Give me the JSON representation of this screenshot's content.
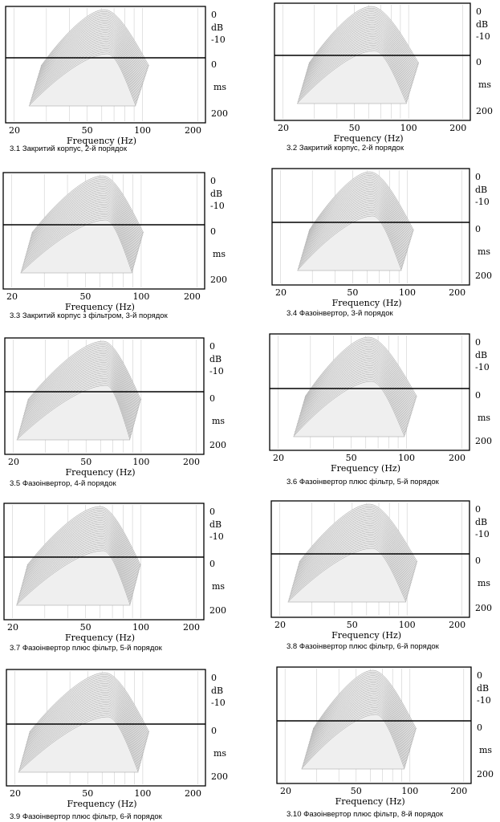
{
  "axis": {
    "x_label": "Frequency (Hz)",
    "x_ticks": [
      20,
      50,
      100,
      200
    ],
    "level_ticks": [
      "0",
      "dB",
      "-10"
    ],
    "time_ticks": [
      "0",
      "ms",
      "200"
    ]
  },
  "colors": {
    "frame": "#000000",
    "surface": "#efefef",
    "slice_line": "#9a9a9a",
    "grid": "#cfcfcf",
    "baseline": "#000000"
  },
  "chart_data": [
    {
      "type": "waterfall",
      "caption": "3.1  Закритий корпус, 2-й порядок",
      "title": "",
      "xlabel": "Frequency (Hz)",
      "xscale": "log",
      "xlim": [
        18,
        220
      ],
      "zlim_db": [
        -15,
        0
      ],
      "time_range_ms": [
        0,
        200
      ],
      "peak_hz": 62,
      "low_rolloff_hz": 35,
      "high_rolloff_hz": 100,
      "skew": 0.0
    },
    {
      "type": "waterfall",
      "caption": "3.2  Закритий корпус, 2-й порядок",
      "title": "",
      "xlabel": "Frequency (Hz)",
      "xscale": "log",
      "xlim": [
        18,
        220
      ],
      "zlim_db": [
        -15,
        0
      ],
      "time_range_ms": [
        0,
        200
      ],
      "peak_hz": 62,
      "low_rolloff_hz": 35,
      "high_rolloff_hz": 105,
      "skew": 0.1
    },
    {
      "type": "waterfall",
      "caption": "3.3  Закритий корпус з фільтром, 3-й порядок",
      "title": "",
      "xlabel": "Frequency (Hz)",
      "xscale": "log",
      "xlim": [
        18,
        220
      ],
      "zlim_db": [
        -15,
        0
      ],
      "time_range_ms": [
        0,
        200
      ],
      "peak_hz": 62,
      "low_rolloff_hz": 32,
      "high_rolloff_hz": 95,
      "skew": 0.2
    },
    {
      "type": "waterfall",
      "caption": "3.4  Фазоінвертор, 3-й порядок",
      "title": "",
      "xlabel": "Frequency (Hz)",
      "xscale": "log",
      "xlim": [
        18,
        220
      ],
      "zlim_db": [
        -15,
        0
      ],
      "time_range_ms": [
        0,
        200
      ],
      "peak_hz": 62,
      "low_rolloff_hz": 36,
      "high_rolloff_hz": 100,
      "skew": 0.1
    },
    {
      "type": "waterfall",
      "caption": "3.5  Фазоінвертор, 4-й порядок",
      "title": "",
      "xlabel": "Frequency (Hz)",
      "xscale": "log",
      "xlim": [
        18,
        220
      ],
      "zlim_db": [
        -15,
        0
      ],
      "time_range_ms": [
        0,
        200
      ],
      "peak_hz": 62,
      "low_rolloff_hz": 30,
      "high_rolloff_hz": 92,
      "skew": 0.25
    },
    {
      "type": "waterfall",
      "caption": "3.6  Фазоінвертор плюс фільтр, 5-й порядок",
      "title": "",
      "xlabel": "Frequency (Hz)",
      "xscale": "log",
      "xlim": [
        18,
        220
      ],
      "zlim_db": [
        -15,
        0
      ],
      "time_range_ms": [
        0,
        200
      ],
      "peak_hz": 62,
      "low_rolloff_hz": 35,
      "high_rolloff_hz": 105,
      "skew": 0.1
    },
    {
      "type": "waterfall",
      "caption": "3.7  Фазоінвертор плюс фільтр, 5-й порядок",
      "title": "",
      "xlabel": "Frequency (Hz)",
      "xscale": "log",
      "xlim": [
        18,
        220
      ],
      "zlim_db": [
        -15,
        0
      ],
      "time_range_ms": [
        0,
        200
      ],
      "peak_hz": 60,
      "low_rolloff_hz": 30,
      "high_rolloff_hz": 92,
      "skew": 0.3
    },
    {
      "type": "waterfall",
      "caption": "3.8  Фазоінвертор плюс фільтр, 6-й порядок",
      "title": "",
      "xlabel": "Frequency (Hz)",
      "xscale": "log",
      "xlim": [
        18,
        220
      ],
      "zlim_db": [
        -15,
        0
      ],
      "time_range_ms": [
        0,
        200
      ],
      "peak_hz": 62,
      "low_rolloff_hz": 32,
      "high_rolloff_hz": 105,
      "skew": 0.2
    },
    {
      "type": "waterfall",
      "caption": "3.9  Фазоінвертор плюс фільтр, 6-й порядок",
      "title": "",
      "xlabel": "Frequency (Hz)",
      "xscale": "log",
      "xlim": [
        18,
        220
      ],
      "zlim_db": [
        -15,
        0
      ],
      "time_range_ms": [
        0,
        200
      ],
      "peak_hz": 62,
      "low_rolloff_hz": 30,
      "high_rolloff_hz": 100,
      "skew": 0.25
    },
    {
      "type": "waterfall",
      "caption": "3.10  Фазоінвертор плюс фільтр, 8-й порядок",
      "title": "",
      "xlabel": "Frequency (Hz)",
      "xscale": "log",
      "xlim": [
        18,
        220
      ],
      "zlim_db": [
        -15,
        0
      ],
      "time_range_ms": [
        0,
        200
      ],
      "peak_hz": 62,
      "low_rolloff_hz": 36,
      "high_rolloff_hz": 100,
      "skew": 0.15
    }
  ]
}
